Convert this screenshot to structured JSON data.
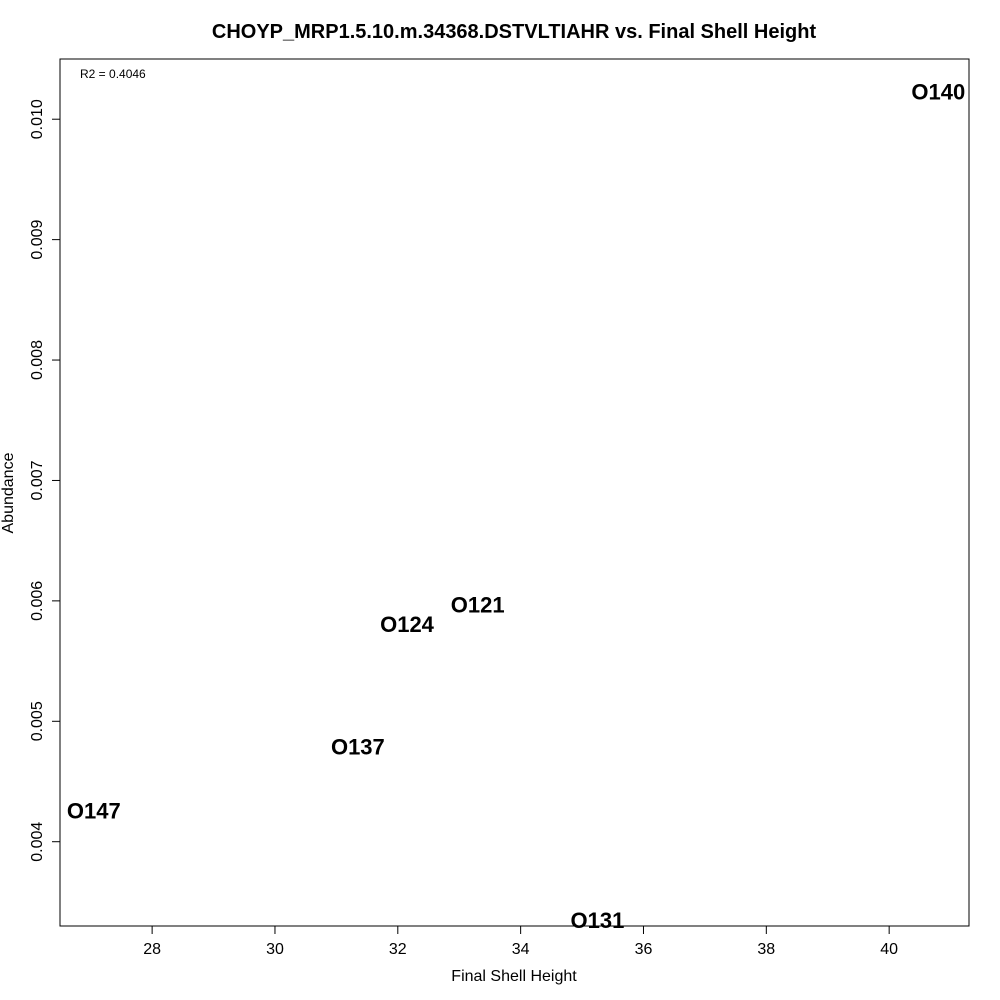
{
  "chart_data": {
    "type": "scatter",
    "title": "CHOYP_MRP1.5.10.m.34368.DSTVLTIAHR vs. Final Shell Height",
    "xlabel": "Final Shell Height",
    "ylabel": "Abundance",
    "xlim": [
      26.5,
      41.3
    ],
    "ylim": [
      0.0033,
      0.0105
    ],
    "x_ticks": [
      28,
      30,
      32,
      34,
      36,
      38,
      40
    ],
    "y_ticks": [
      0.004,
      0.005,
      0.006,
      0.007,
      0.008,
      0.009,
      0.01
    ],
    "y_tick_labels": [
      "0.004",
      "0.005",
      "0.006",
      "0.007",
      "0.008",
      "0.009",
      "0.010"
    ],
    "annotation": "R2 = 0.4046",
    "points": [
      {
        "label": "O140",
        "x": 40.8,
        "y": 0.01023
      },
      {
        "label": "O121",
        "x": 33.3,
        "y": 0.00597
      },
      {
        "label": "O124",
        "x": 32.15,
        "y": 0.00581
      },
      {
        "label": "O137",
        "x": 31.35,
        "y": 0.00479
      },
      {
        "label": "O147",
        "x": 27.05,
        "y": 0.00426
      },
      {
        "label": "O131",
        "x": 35.25,
        "y": 0.00335
      }
    ]
  }
}
